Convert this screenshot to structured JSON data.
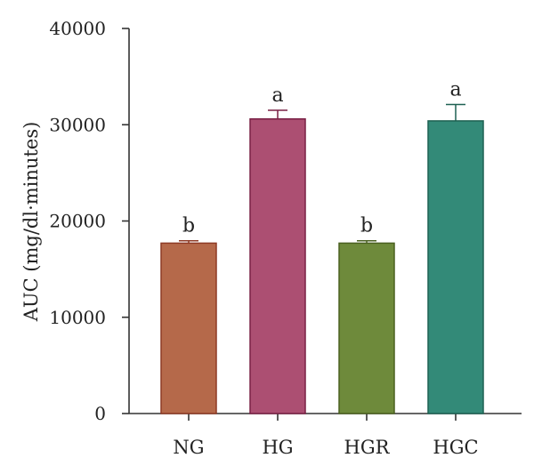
{
  "chart_data": {
    "type": "bar",
    "title": "",
    "xlabel": "",
    "ylabel": "AUC (mg/dl·minutes)",
    "ylim": [
      0,
      40000
    ],
    "yticks": [
      0,
      10000,
      20000,
      30000,
      40000
    ],
    "ytick_labels": [
      "0",
      "10000",
      "20000",
      "30000",
      "40000"
    ],
    "categories": [
      "NG",
      "HG",
      "HGR",
      "HGC"
    ],
    "values": [
      17700,
      30600,
      17700,
      30400
    ],
    "error": [
      250,
      900,
      250,
      1700
    ],
    "significance": [
      "b",
      "a",
      "b",
      "a"
    ],
    "colors": [
      "#B5694A",
      "#AC4F72",
      "#6E8A3B",
      "#338A78"
    ],
    "edge_colors": [
      "#8E3A25",
      "#7A2045",
      "#4A6020",
      "#1E6152"
    ],
    "grid": false,
    "legend": "none"
  }
}
